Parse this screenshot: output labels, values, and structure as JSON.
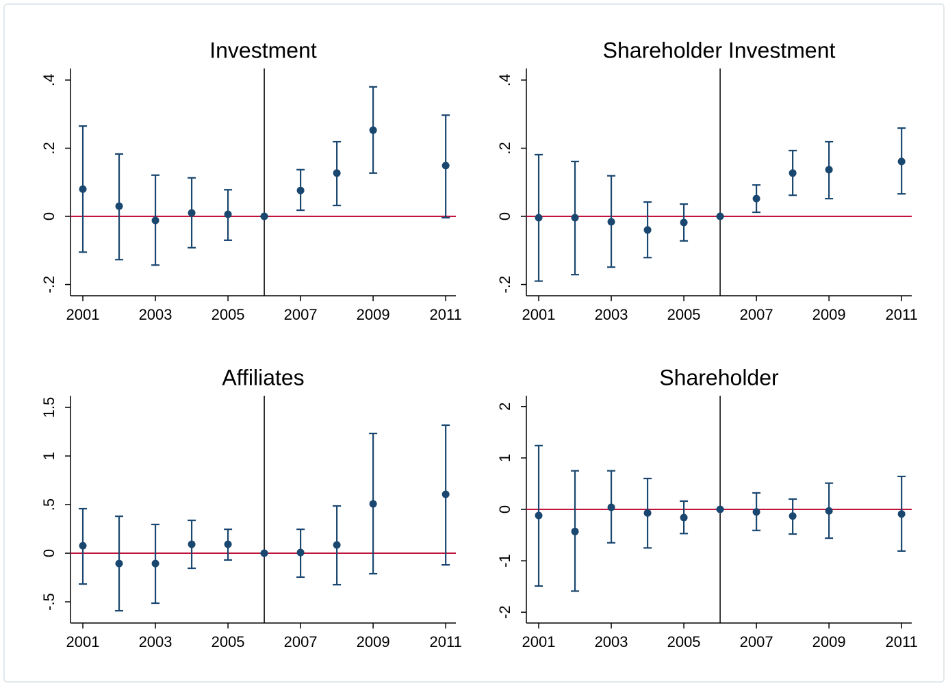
{
  "chart_data": [
    {
      "type": "errorbar",
      "title": "Investment",
      "x": [
        2001,
        2002,
        2003,
        2004,
        2005,
        2006,
        2007,
        2008,
        2009,
        2011
      ],
      "values": [
        0.08,
        0.03,
        -0.012,
        0.01,
        0.006,
        0,
        0.076,
        0.127,
        0.253,
        0.149
      ],
      "lower": [
        -0.105,
        -0.127,
        -0.143,
        -0.092,
        -0.07,
        0,
        0.018,
        0.032,
        0.127,
        -0.004
      ],
      "upper": [
        0.265,
        0.183,
        0.121,
        0.113,
        0.078,
        0,
        0.137,
        0.219,
        0.38,
        0.297
      ],
      "color": "#1a476f",
      "hline": 0,
      "hline_color": "#c0143c",
      "vline": 2006,
      "vline_color": "#000000",
      "xlim": [
        2000.66,
        2011.28
      ],
      "xticks": [
        2001,
        2003,
        2005,
        2007,
        2009,
        2011
      ],
      "ylim": [
        -0.233,
        0.434
      ],
      "yticks": [
        {
          "value": -0.2,
          "label": "-.2"
        },
        0,
        {
          "value": 0.2,
          "label": ".2"
        },
        {
          "value": 0.4,
          "label": ".4"
        }
      ]
    },
    {
      "type": "errorbar",
      "title": "Shareholder Investment",
      "x": [
        2001,
        2002,
        2003,
        2004,
        2005,
        2006,
        2007,
        2008,
        2009,
        2011
      ],
      "values": [
        -0.004,
        -0.004,
        -0.016,
        -0.04,
        -0.018,
        0,
        0.052,
        0.127,
        0.137,
        0.161
      ],
      "lower": [
        -0.19,
        -0.171,
        -0.149,
        -0.121,
        -0.072,
        0,
        0.012,
        0.062,
        0.052,
        0.066
      ],
      "upper": [
        0.181,
        0.161,
        0.119,
        0.042,
        0.036,
        0,
        0.092,
        0.193,
        0.219,
        0.259
      ],
      "color": "#1a476f",
      "hline": 0,
      "hline_color": "#c0143c",
      "vline": 2006,
      "vline_color": "#000000",
      "xlim": [
        2000.66,
        2011.28
      ],
      "xticks": [
        2001,
        2003,
        2005,
        2007,
        2009,
        2011
      ],
      "ylim": [
        -0.233,
        0.434
      ],
      "yticks": [
        {
          "value": -0.2,
          "label": "-.2"
        },
        0,
        {
          "value": 0.2,
          "label": ".2"
        },
        {
          "value": 0.4,
          "label": ".4"
        }
      ]
    },
    {
      "type": "errorbar",
      "title": "Affiliates",
      "x": [
        2001,
        2002,
        2003,
        2004,
        2005,
        2006,
        2007,
        2008,
        2009,
        2011
      ],
      "values": [
        0.077,
        -0.106,
        -0.106,
        0.092,
        0.092,
        0,
        0.007,
        0.085,
        0.507,
        0.606
      ],
      "lower": [
        -0.317,
        -0.592,
        -0.514,
        -0.155,
        -0.07,
        0,
        -0.246,
        -0.324,
        -0.211,
        -0.12
      ],
      "upper": [
        0.458,
        0.38,
        0.296,
        0.338,
        0.246,
        0,
        0.246,
        0.486,
        1.232,
        1.317
      ],
      "color": "#1a476f",
      "hline": 0,
      "hline_color": "#c0143c",
      "vline": 2006,
      "vline_color": "#000000",
      "xlim": [
        2000.66,
        2011.28
      ],
      "xticks": [
        2001,
        2003,
        2005,
        2007,
        2009,
        2011
      ],
      "ylim": [
        -0.718,
        1.62
      ],
      "yticks": [
        {
          "value": -0.5,
          "label": "-.5"
        },
        0,
        {
          "value": 0.5,
          "label": ".5"
        },
        1,
        1.5
      ]
    },
    {
      "type": "errorbar",
      "title": "Shareholder",
      "x": [
        2001,
        2002,
        2003,
        2004,
        2005,
        2006,
        2007,
        2008,
        2009,
        2011
      ],
      "values": [
        -0.12,
        -0.43,
        0.04,
        -0.07,
        -0.16,
        0,
        -0.05,
        -0.13,
        -0.03,
        -0.09
      ],
      "lower": [
        -1.49,
        -1.59,
        -0.65,
        -0.75,
        -0.47,
        0,
        -0.41,
        -0.48,
        -0.56,
        -0.81
      ],
      "upper": [
        1.24,
        0.75,
        0.75,
        0.6,
        0.16,
        0,
        0.32,
        0.2,
        0.51,
        0.64
      ],
      "color": "#1a476f",
      "hline": 0,
      "hline_color": "#c0143c",
      "vline": 2006,
      "vline_color": "#000000",
      "xlim": [
        2000.66,
        2011.28
      ],
      "xticks": [
        2001,
        2003,
        2005,
        2007,
        2009,
        2011
      ],
      "ylim": [
        -2.21,
        2.21
      ],
      "yticks": [
        -2,
        -1,
        0,
        1,
        2
      ]
    }
  ]
}
